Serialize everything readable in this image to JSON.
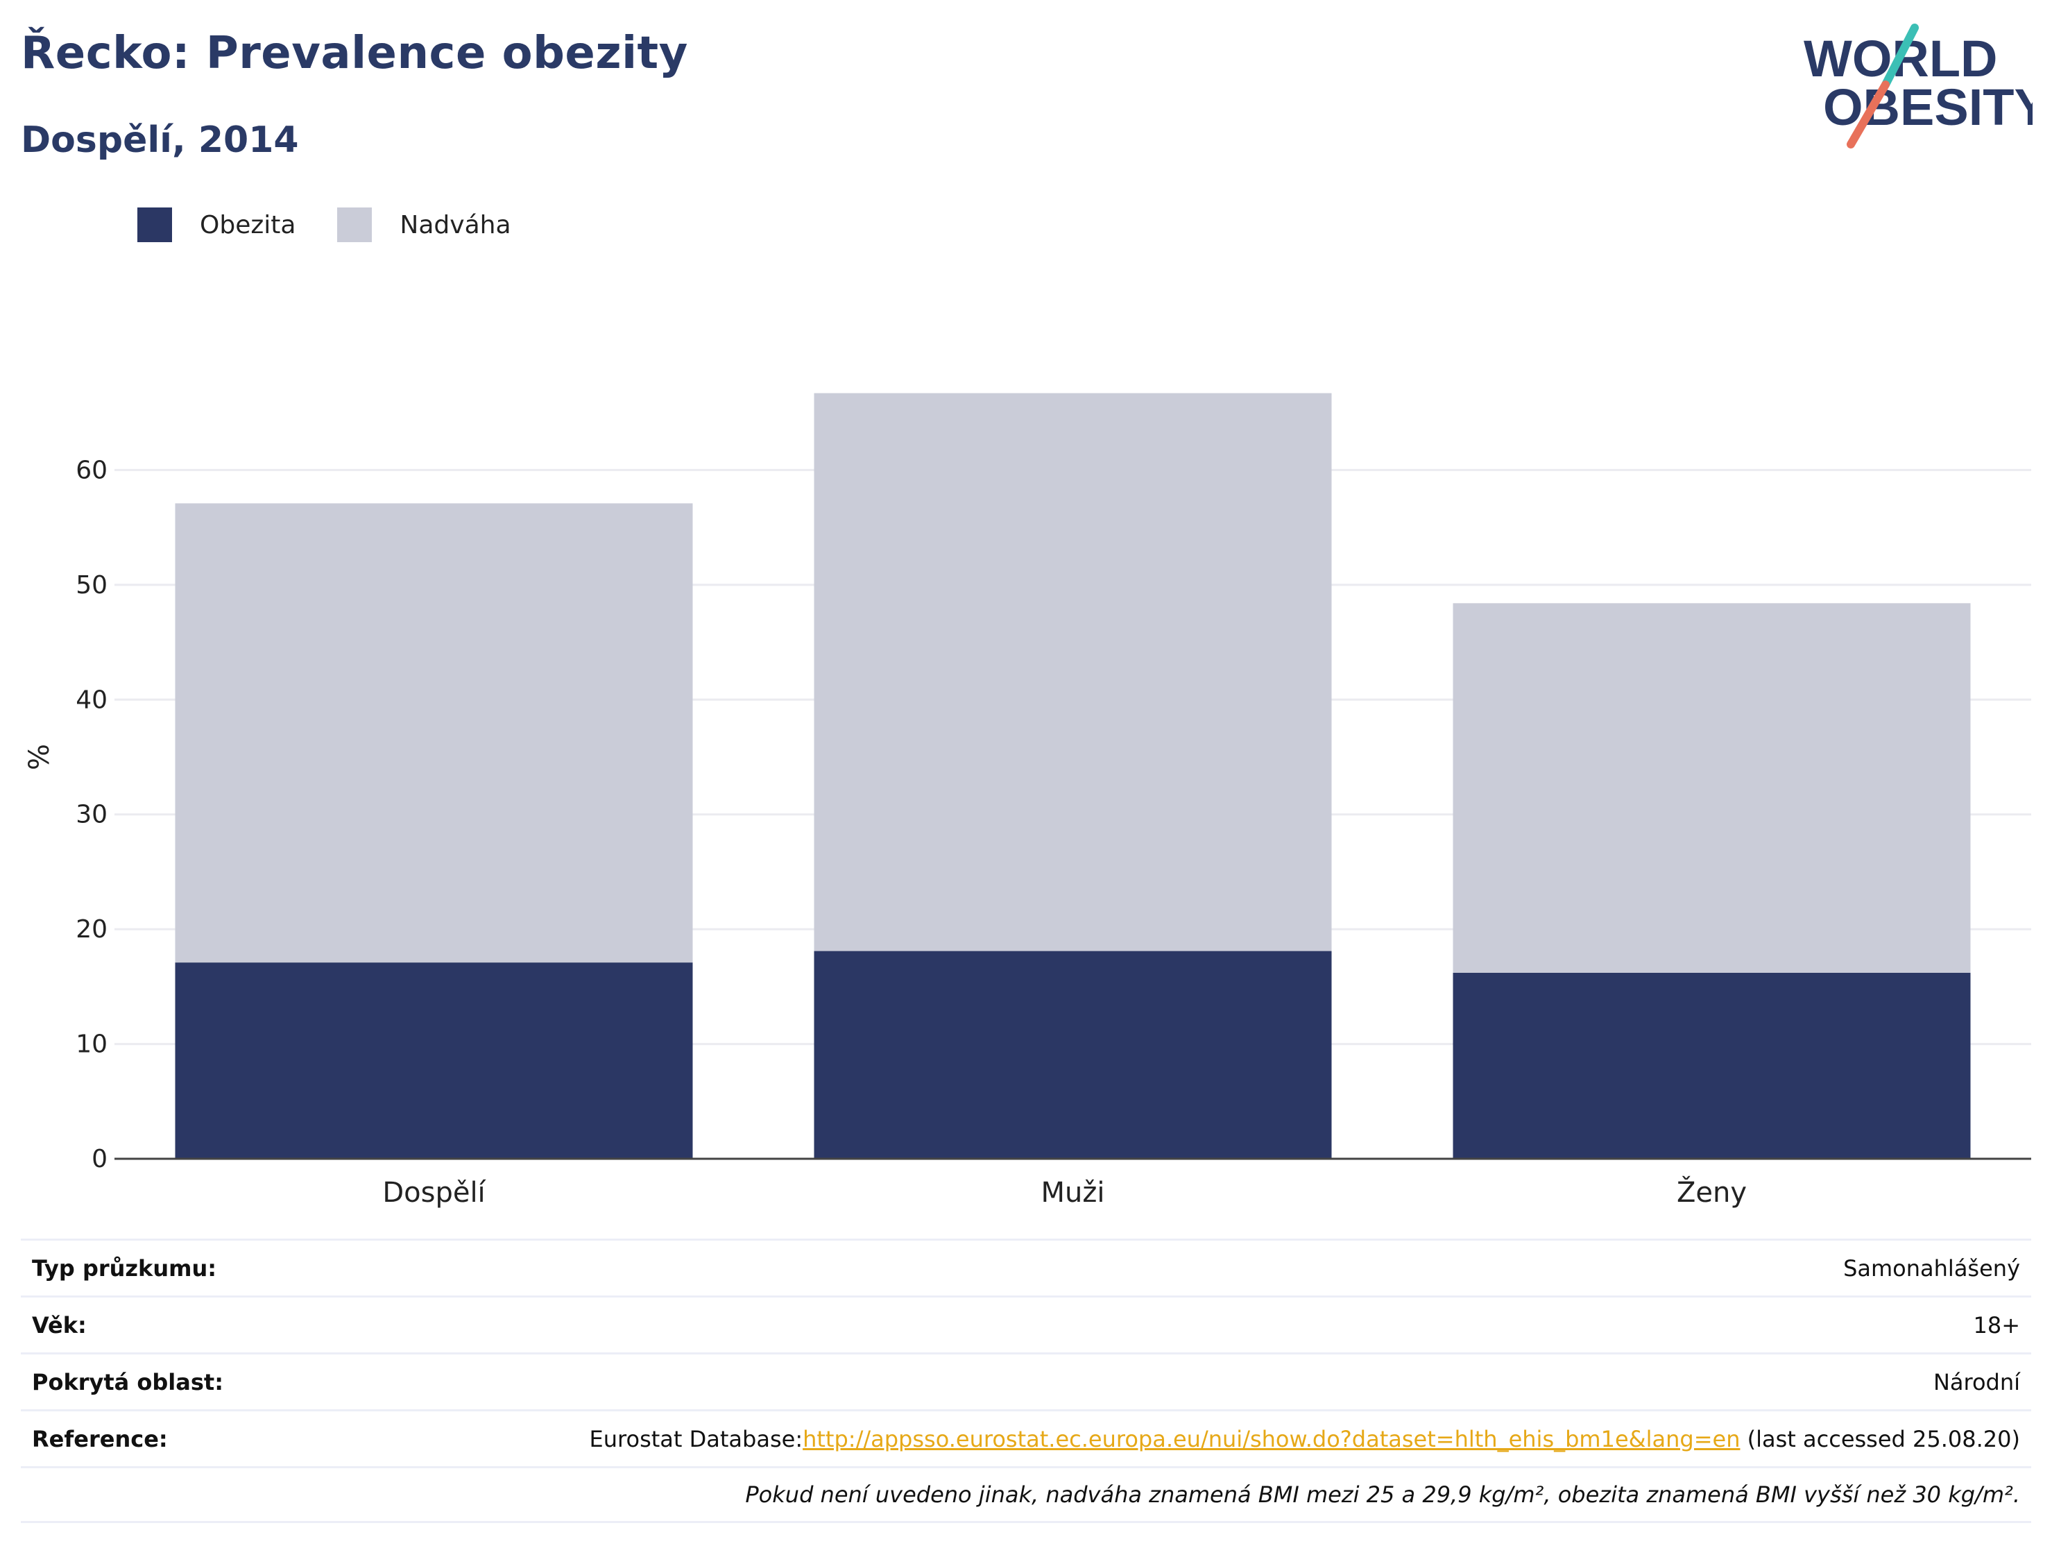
{
  "header": {
    "title": "Řecko: Prevalence obezity",
    "subtitle": "Dospělí, 2014"
  },
  "logo": {
    "line1": "WORLD",
    "line2": "OBESITY",
    "colors": {
      "text": "#2a3a66",
      "slash_top": "#3bbfb5",
      "slash_bottom": "#e8715a"
    }
  },
  "legend": {
    "items": [
      {
        "label": "Obezita",
        "color": "#2b3764"
      },
      {
        "label": "Nadváha",
        "color": "#caccd8"
      }
    ]
  },
  "chart_data": {
    "type": "bar",
    "stacked": true,
    "categories": [
      "Dospělí",
      "Muži",
      "Ženy"
    ],
    "series": [
      {
        "name": "Obezita",
        "values": [
          17.1,
          18.1,
          16.2
        ],
        "color": "#2b3764"
      },
      {
        "name": "Nadváha",
        "values": [
          40.0,
          48.6,
          32.2
        ],
        "color": "#caccd8"
      }
    ],
    "ylabel": "%",
    "ylim": [
      0,
      70
    ],
    "yticks": [
      0,
      10,
      20,
      30,
      40,
      50,
      60
    ],
    "grid": true,
    "legend_position": "top-left"
  },
  "info": {
    "survey_label": "Typ průzkumu:",
    "survey_value": "Samonahlášený",
    "age_label": "Věk:",
    "age_value": "18+",
    "area_label": "Pokrytá oblast:",
    "area_value": "Národní",
    "reference_label": "Reference:",
    "reference_prefix": "Eurostat Database:",
    "reference_link": "http://appsso.eurostat.ec.europa.eu/nui/show.do?dataset=hlth_ehis_bm1e&lang=en",
    "reference_suffix": " (last accessed 25.08.20)",
    "note": "Pokud není uvedeno jinak, nadváha znamená BMI mezi 25 a 29,9 kg/m², obezita znamená BMI vyšší než 30 kg/m²."
  }
}
